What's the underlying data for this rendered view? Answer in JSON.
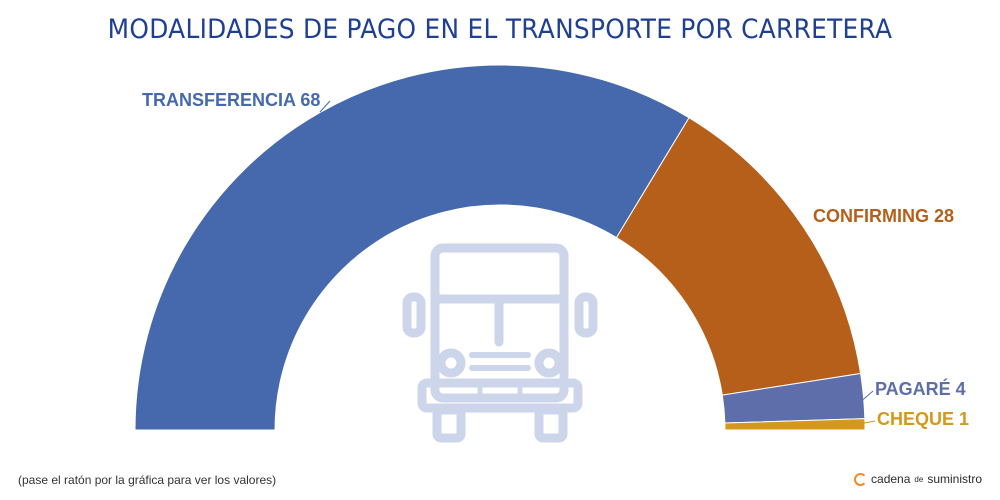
{
  "title": "MODALIDADES DE PAGO EN EL TRANSPORTE POR CARRETERA",
  "footnote": "(pase el ratón por la gráfica para ver los valores)",
  "brand": {
    "name": "cadena",
    "connector": "de",
    "suffix": "suministro"
  },
  "center_icon": "truck-icon",
  "chart_data": {
    "type": "pie",
    "variant": "semicircle-donut",
    "categories": [
      "TRANSFERENCIA",
      "CONFIRMING",
      "PAGARÉ",
      "CHEQUE"
    ],
    "values": [
      68,
      28,
      4,
      1
    ],
    "labels": [
      "TRANSFERENCIA 68",
      "CONFIRMING 28",
      "PAGARÉ 4",
      "CHEQUE 1"
    ],
    "colors": [
      "#4569ac",
      "#b55f1a",
      "#5d6eaa",
      "#d3981c"
    ],
    "title": "MODALIDADES DE PAGO EN EL TRANSPORTE POR CARRETERA"
  }
}
